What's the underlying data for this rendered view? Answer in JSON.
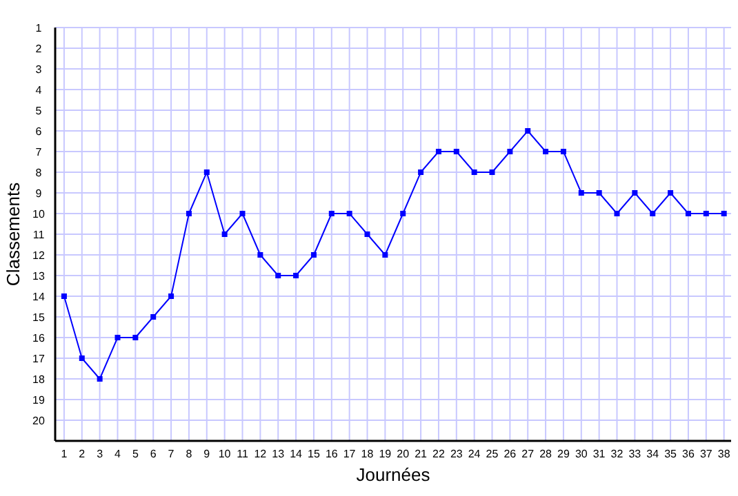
{
  "chart_data": {
    "type": "line",
    "xlabel": "Journées",
    "ylabel": "Classements",
    "x": [
      1,
      2,
      3,
      4,
      5,
      6,
      7,
      8,
      9,
      10,
      11,
      12,
      13,
      14,
      15,
      16,
      17,
      18,
      19,
      20,
      21,
      22,
      23,
      24,
      25,
      26,
      27,
      28,
      29,
      30,
      31,
      32,
      33,
      34,
      35,
      36,
      37,
      38
    ],
    "series": [
      {
        "color": "#0000ff",
        "values": [
          14,
          17,
          18,
          16,
          16,
          15,
          14,
          10,
          8,
          11,
          10,
          12,
          13,
          13,
          12,
          10,
          10,
          11,
          12,
          10,
          8,
          7,
          7,
          8,
          8,
          7,
          6,
          7,
          7,
          9,
          9,
          10,
          9,
          10,
          9,
          10,
          10,
          10
        ]
      }
    ],
    "xlim": [
      0.5,
      38.4
    ],
    "xticks": [
      1,
      2,
      3,
      4,
      5,
      6,
      7,
      8,
      9,
      10,
      11,
      12,
      13,
      14,
      15,
      16,
      17,
      18,
      19,
      20,
      21,
      22,
      23,
      24,
      25,
      26,
      27,
      28,
      29,
      30,
      31,
      32,
      33,
      34,
      35,
      36,
      37,
      38
    ],
    "ylim": [
      21,
      1
    ],
    "yticks": [
      1,
      2,
      3,
      4,
      5,
      6,
      7,
      8,
      9,
      10,
      11,
      12,
      13,
      14,
      15,
      16,
      17,
      18,
      19,
      20
    ],
    "grid": true,
    "marker": "square",
    "line_style": "solid"
  }
}
